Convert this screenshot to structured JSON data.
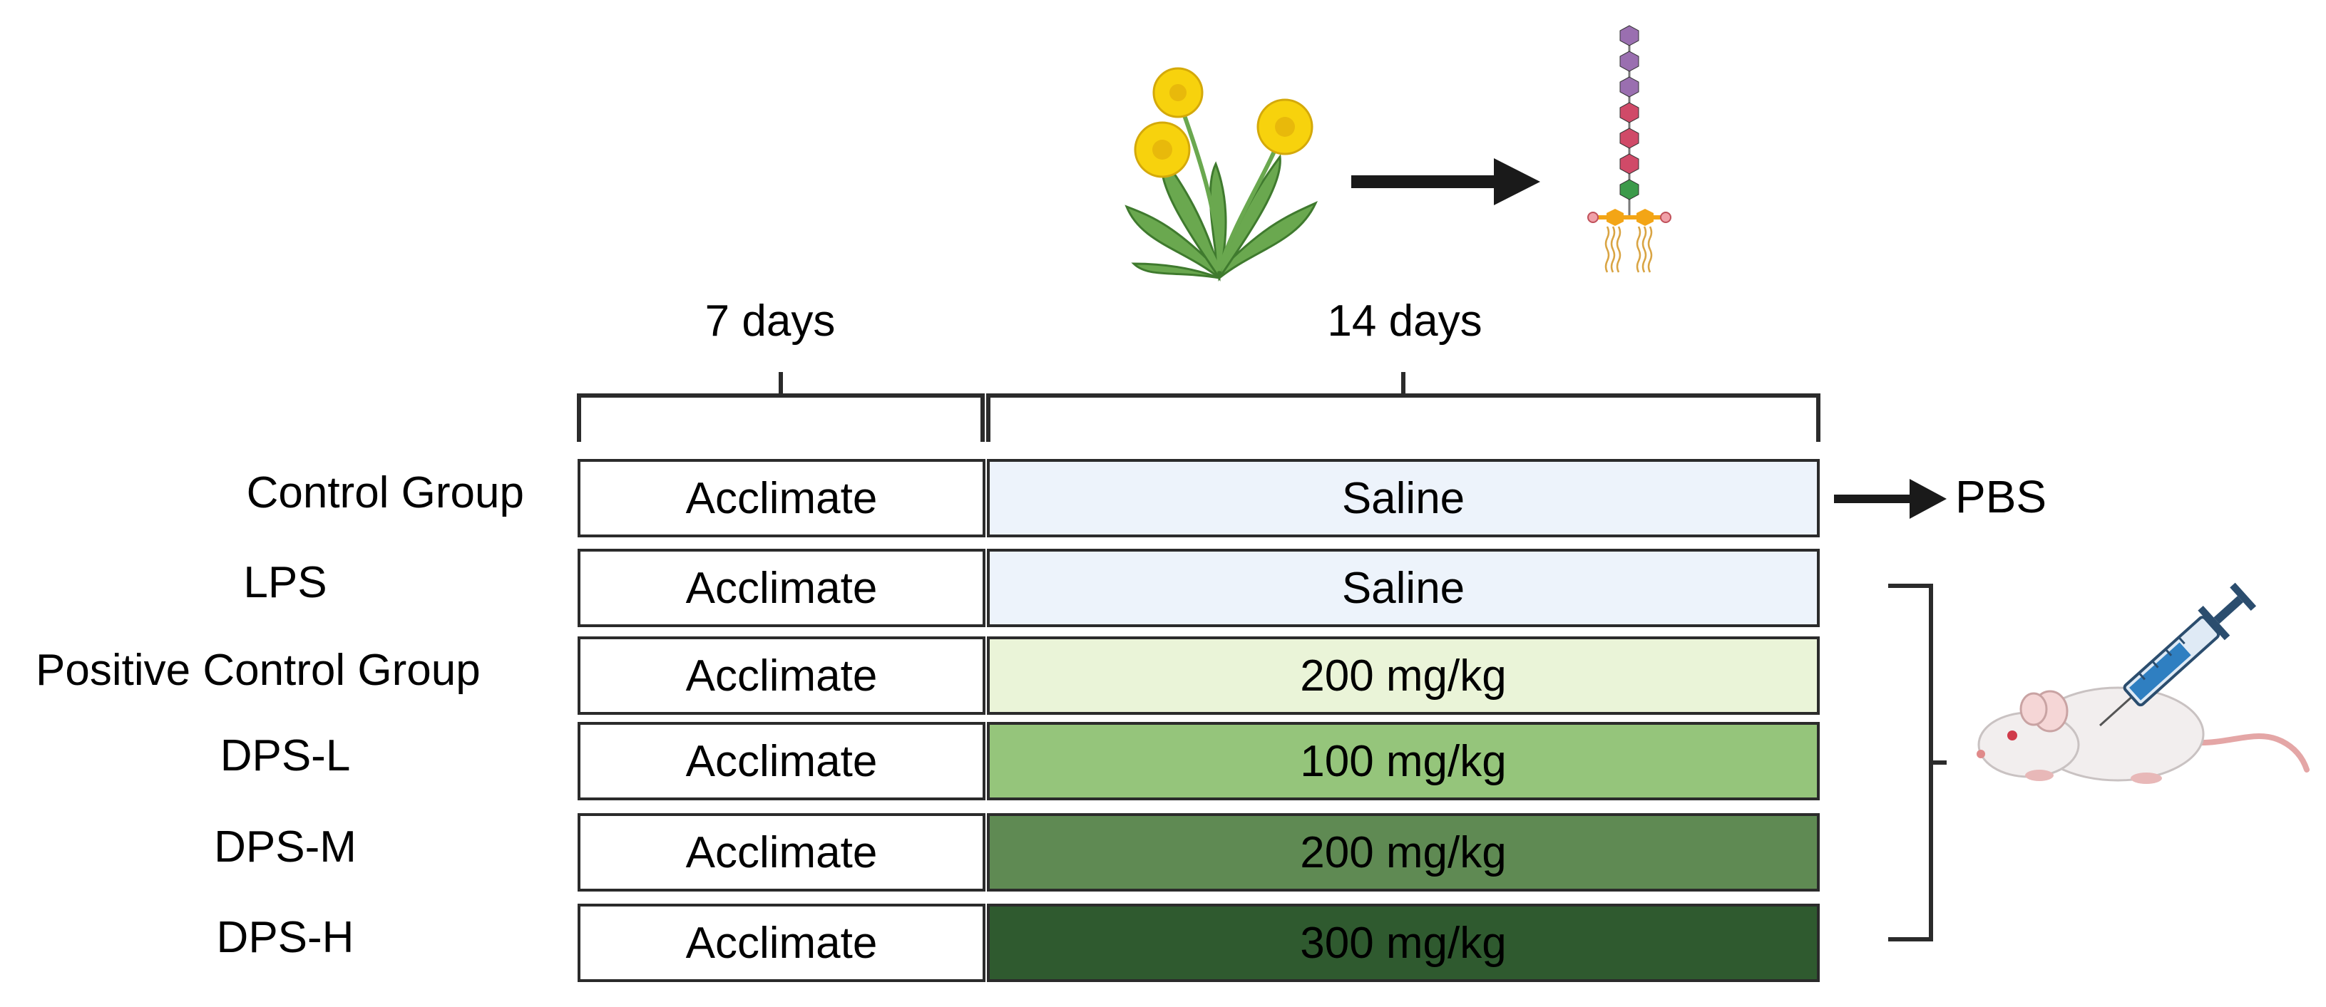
{
  "periods": {
    "acclimation": "7 days",
    "treatment": "14 days"
  },
  "groups": [
    {
      "label": "Control Group",
      "stage1": "Acclimate",
      "stage2": "Saline",
      "fill": "#edf3fb"
    },
    {
      "label": "LPS",
      "stage1": "Acclimate",
      "stage2": "Saline",
      "fill": "#edf3fb"
    },
    {
      "label": "Positive Control Group",
      "stage1": "Acclimate",
      "stage2": "200 mg/kg",
      "fill": "#eaf4d8"
    },
    {
      "label": "DPS-L",
      "stage1": "Acclimate",
      "stage2": "100 mg/kg",
      "fill": "#95c57b"
    },
    {
      "label": "DPS-M",
      "stage1": "Acclimate",
      "stage2": "200 mg/kg",
      "fill": "#5f8a53"
    },
    {
      "label": "DPS-H",
      "stage1": "Acclimate",
      "stage2": "300 mg/kg",
      "fill": "#2f5a2f"
    }
  ],
  "pbs_label": "PBS",
  "colors": {
    "outline": "#2b2b2b",
    "dandelion_flower": "#f7d20d",
    "dandelion_leaf": "#6aa84f",
    "sugar_purple": "#9a6fb0",
    "sugar_red": "#d04a68",
    "sugar_green": "#3c9a4a",
    "lipid_orange": "#f3a516",
    "syringe_blue": "#2f7fc1",
    "mouse_body": "#f2eeee"
  },
  "icons": [
    "dandelion-plant-icon",
    "polysaccharide-chain-icon",
    "mouse-injection-icon",
    "right-arrow-icon"
  ]
}
